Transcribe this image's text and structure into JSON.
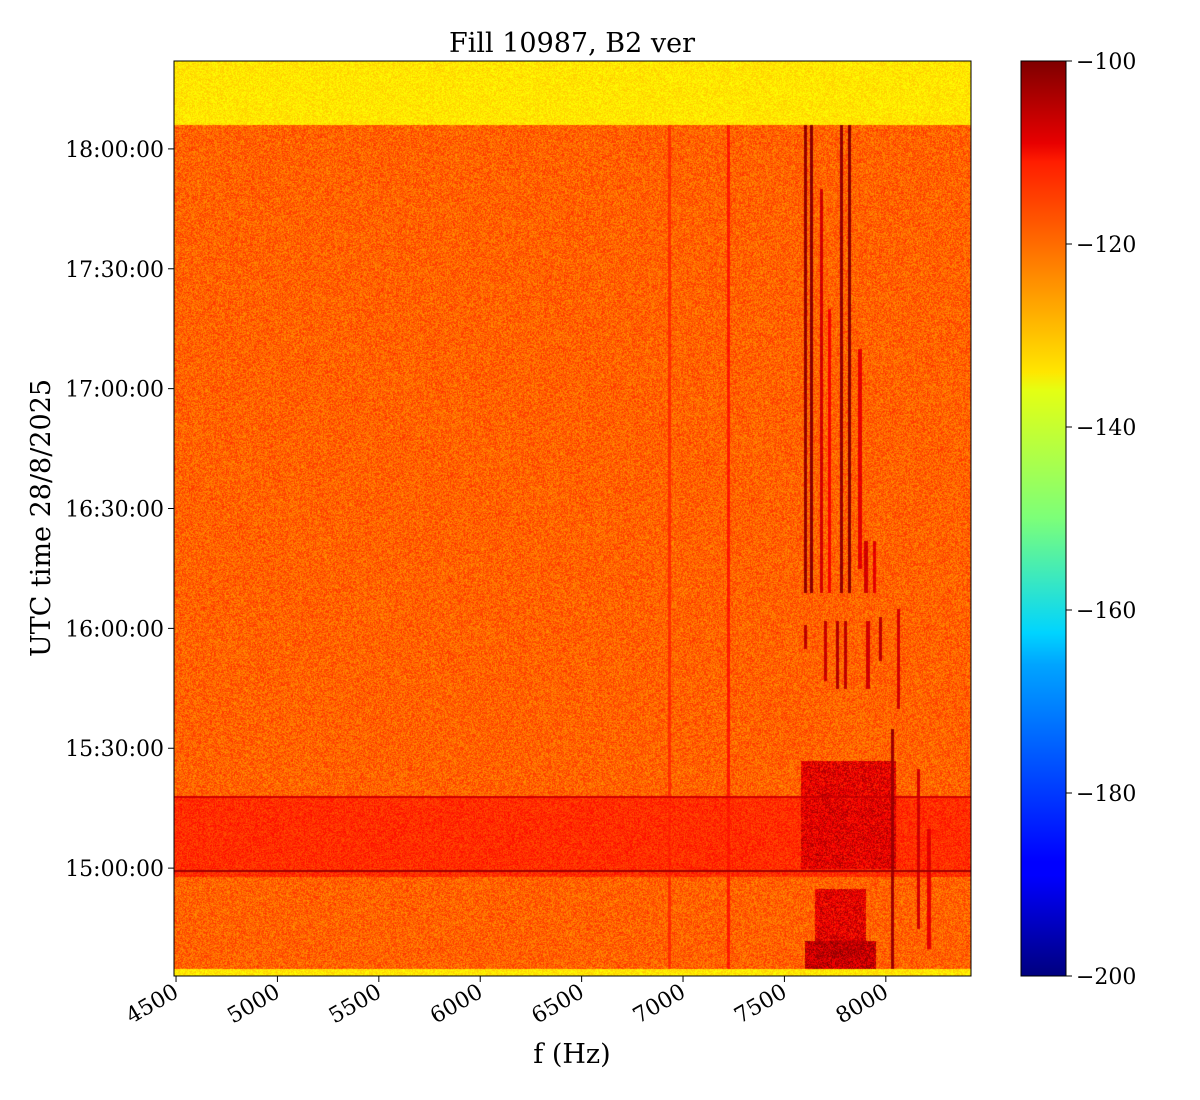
{
  "chart_data": {
    "type": "heatmap",
    "title": "Fill 10987, B2 ver",
    "xlabel": "f (Hz)",
    "ylabel": "UTC time 28/8/2025",
    "xlim": [
      4490,
      8420
    ],
    "ylim_time": [
      "14:33:00",
      "18:22:00"
    ],
    "x_ticks": [
      4500,
      5000,
      5500,
      6000,
      6500,
      7000,
      7500,
      8000
    ],
    "x_tick_labels": [
      "4500",
      "5000",
      "5500",
      "6000",
      "6500",
      "7000",
      "7500",
      "8000"
    ],
    "y_ticks": [
      "15:00:00",
      "15:30:00",
      "16:00:00",
      "16:30:00",
      "17:00:00",
      "17:30:00",
      "18:00:00"
    ],
    "y_tick_labels": [
      "15:00:00",
      "15:30:00",
      "16:00:00",
      "16:30:00",
      "17:00:00",
      "17:30:00",
      "18:00:00"
    ],
    "colormap": "jet",
    "colorbar": {
      "min": -200,
      "max": -100,
      "ticks": [
        -100,
        -120,
        -140,
        -160,
        -180,
        -200
      ],
      "tick_labels": [
        "−100",
        "−120",
        "−140",
        "−160",
        "−180",
        "−200"
      ]
    },
    "background_level": -122,
    "data_start": "14:35:00",
    "data_end": "18:06:00",
    "empty_level": -135,
    "features": [
      {
        "kind": "band",
        "t_start": "14:58:00",
        "t_end": "15:18:00",
        "level": -117
      },
      {
        "kind": "line",
        "t": "14:59:30",
        "level": -103
      },
      {
        "kind": "line",
        "t": "15:18:00",
        "level": -108
      },
      {
        "kind": "blob",
        "f_start": 7580,
        "f_end": 8050,
        "t_start": "15:00:00",
        "t_end": "15:27:00",
        "level": -110
      },
      {
        "kind": "blob",
        "f_start": 7600,
        "f_end": 7950,
        "t_start": "14:35:00",
        "t_end": "14:42:00",
        "level": -107
      },
      {
        "kind": "blob",
        "f_start": 7650,
        "f_end": 7900,
        "t_start": "14:38:00",
        "t_end": "14:55:00",
        "level": -110
      },
      {
        "kind": "stripe",
        "f": 7600,
        "t_start": "16:09:00",
        "t_end": "18:06:00",
        "level": -102
      },
      {
        "kind": "stripe",
        "f": 7630,
        "t_start": "16:09:00",
        "t_end": "18:06:00",
        "level": -101
      },
      {
        "kind": "stripe",
        "f": 7680,
        "t_start": "16:09:00",
        "t_end": "17:50:00",
        "level": -108
      },
      {
        "kind": "stripe",
        "f": 7720,
        "t_start": "16:09:00",
        "t_end": "17:20:00",
        "level": -112
      },
      {
        "kind": "stripe",
        "f": 7780,
        "t_start": "16:09:00",
        "t_end": "18:06:00",
        "level": -102
      },
      {
        "kind": "stripe",
        "f": 7820,
        "t_start": "16:09:00",
        "t_end": "18:06:00",
        "level": -101
      },
      {
        "kind": "stripe",
        "f": 7870,
        "t_start": "16:15:00",
        "t_end": "17:10:00",
        "level": -110
      },
      {
        "kind": "stripe",
        "f": 7900,
        "t_start": "16:09:00",
        "t_end": "16:22:00",
        "level": -108
      },
      {
        "kind": "stripe",
        "f": 7940,
        "t_start": "16:09:00",
        "t_end": "16:22:00",
        "level": -110
      },
      {
        "kind": "stripe",
        "f": 8030,
        "t_start": "14:35:00",
        "t_end": "15:35:00",
        "level": -103
      },
      {
        "kind": "stripe",
        "f": 8060,
        "t_start": "15:40:00",
        "t_end": "16:05:00",
        "level": -108
      },
      {
        "kind": "stripe",
        "f": 8160,
        "t_start": "14:45:00",
        "t_end": "15:25:00",
        "level": -108
      },
      {
        "kind": "stripe",
        "f": 8210,
        "t_start": "14:40:00",
        "t_end": "15:10:00",
        "level": -110
      },
      {
        "kind": "stripe",
        "f": 7220,
        "t_start": "14:35:00",
        "t_end": "18:06:00",
        "level": -115
      },
      {
        "kind": "stripe",
        "f": 6930,
        "t_start": "14:35:00",
        "t_end": "18:06:00",
        "level": -117
      },
      {
        "kind": "stripe",
        "f": 7600,
        "t_start": "15:55:00",
        "t_end": "16:01:00",
        "level": -106
      },
      {
        "kind": "stripe",
        "f": 7700,
        "t_start": "15:47:00",
        "t_end": "16:02:00",
        "level": -107
      },
      {
        "kind": "stripe",
        "f": 7760,
        "t_start": "15:45:00",
        "t_end": "16:02:00",
        "level": -105
      },
      {
        "kind": "stripe",
        "f": 7800,
        "t_start": "15:45:00",
        "t_end": "16:02:00",
        "level": -106
      },
      {
        "kind": "stripe",
        "f": 7910,
        "t_start": "15:45:00",
        "t_end": "16:02:00",
        "level": -108
      },
      {
        "kind": "stripe",
        "f": 7970,
        "t_start": "15:52:00",
        "t_end": "16:03:00",
        "level": -106
      }
    ]
  }
}
